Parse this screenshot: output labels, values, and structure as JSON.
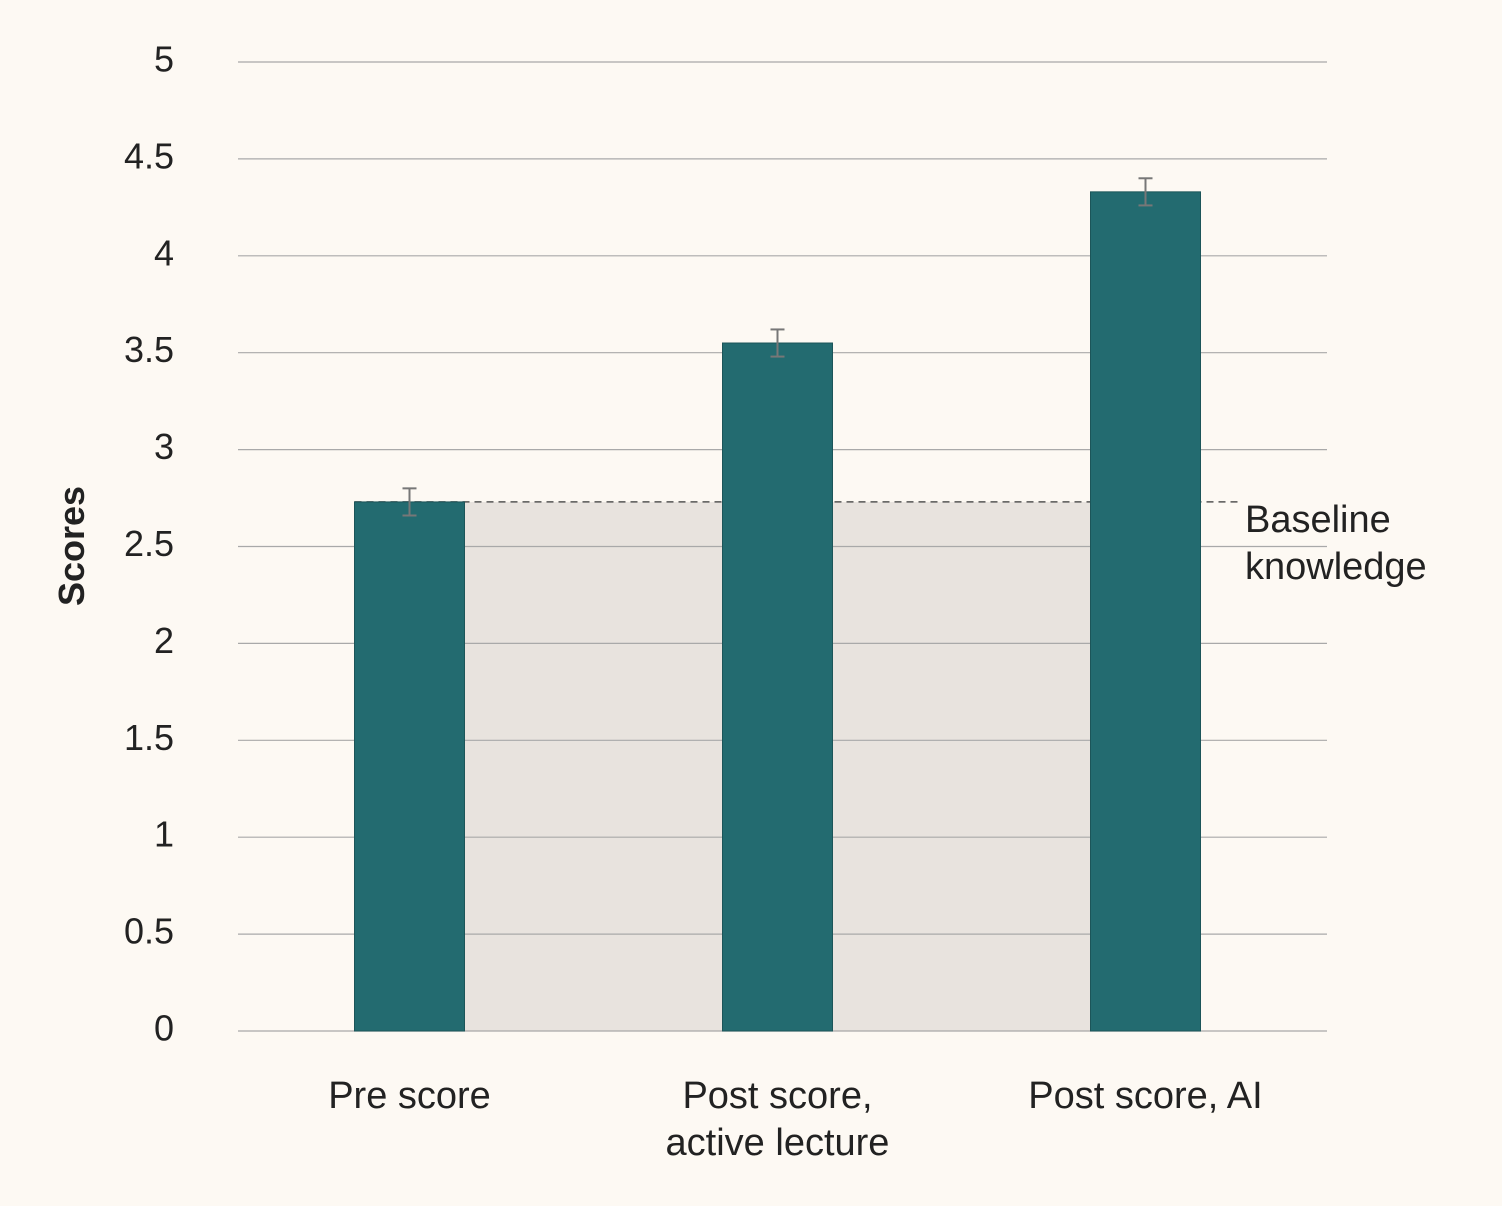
{
  "chart_data": {
    "type": "bar",
    "categories": [
      [
        "Pre score"
      ],
      [
        "Post score,",
        "active lecture"
      ],
      [
        "Post score, AI"
      ]
    ],
    "series": [
      {
        "values": [
          2.73,
          3.55,
          4.33
        ],
        "error": [
          0.07,
          0.07,
          0.07
        ],
        "color": "#236b70"
      }
    ],
    "xlabel": "",
    "ylabel": "Scores",
    "ylim": [
      0,
      5
    ],
    "yticks": [
      "0",
      "0.5",
      "1",
      "1.5",
      "2",
      "2.5",
      "3",
      "3.5",
      "4",
      "4.5",
      "5"
    ],
    "ytick_values": [
      0,
      0.5,
      1,
      1.5,
      2,
      2.5,
      3,
      3.5,
      4,
      4.5,
      5
    ],
    "grid": true,
    "baseline": {
      "value": 2.73,
      "label": [
        "Baseline",
        "knowledge"
      ],
      "shade_color": "#e8e3de"
    },
    "colors": {
      "background": "#fdf9f3",
      "gridline": "#a9a9a9",
      "errorbar": "#777777"
    }
  }
}
